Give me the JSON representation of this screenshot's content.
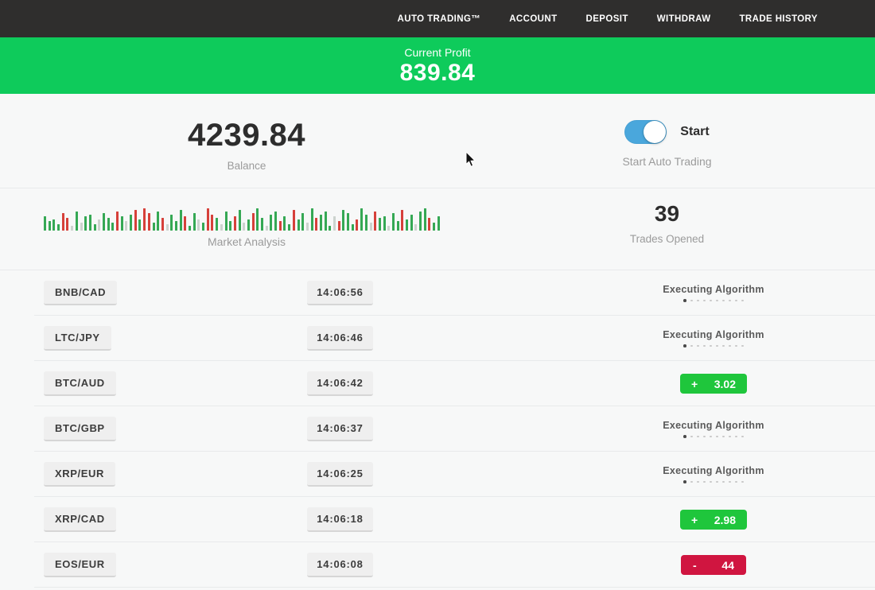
{
  "nav": {
    "items": [
      {
        "label": "AUTO TRADING™"
      },
      {
        "label": "ACCOUNT"
      },
      {
        "label": "DEPOSIT"
      },
      {
        "label": "WITHDRAW"
      },
      {
        "label": "TRADE HISTORY"
      }
    ]
  },
  "profit_banner": {
    "label": "Current Profit",
    "value": "839.84",
    "bg_color": "#0ecb5b"
  },
  "stats": {
    "balance": {
      "value": "4239.84",
      "label": "Balance"
    },
    "auto_trading": {
      "toggle_on": true,
      "toggle_label": "Start",
      "caption": "Start Auto Trading",
      "toggle_color": "#4aa7dc"
    },
    "market_analysis": {
      "label": "Market Analysis",
      "bar_colors": {
        "g": "#35a854",
        "r": "#d6403a",
        "e": "#ccd3ce"
      },
      "bars": [
        [
          18,
          "g"
        ],
        [
          12,
          "g"
        ],
        [
          14,
          "g"
        ],
        [
          8,
          "g"
        ],
        [
          22,
          "r"
        ],
        [
          16,
          "r"
        ],
        [
          6,
          "e"
        ],
        [
          24,
          "g"
        ],
        [
          10,
          "e"
        ],
        [
          18,
          "g"
        ],
        [
          20,
          "g"
        ],
        [
          8,
          "g"
        ],
        [
          14,
          "e"
        ],
        [
          22,
          "g"
        ],
        [
          16,
          "g"
        ],
        [
          10,
          "g"
        ],
        [
          24,
          "r"
        ],
        [
          18,
          "g"
        ],
        [
          12,
          "e"
        ],
        [
          20,
          "g"
        ],
        [
          26,
          "r"
        ],
        [
          14,
          "g"
        ],
        [
          28,
          "r"
        ],
        [
          22,
          "r"
        ],
        [
          10,
          "g"
        ],
        [
          24,
          "g"
        ],
        [
          16,
          "r"
        ],
        [
          8,
          "e"
        ],
        [
          20,
          "g"
        ],
        [
          12,
          "g"
        ],
        [
          26,
          "g"
        ],
        [
          18,
          "r"
        ],
        [
          6,
          "g"
        ],
        [
          22,
          "g"
        ],
        [
          14,
          "e"
        ],
        [
          10,
          "g"
        ],
        [
          28,
          "r"
        ],
        [
          20,
          "r"
        ],
        [
          16,
          "g"
        ],
        [
          8,
          "e"
        ],
        [
          24,
          "g"
        ],
        [
          12,
          "g"
        ],
        [
          18,
          "r"
        ],
        [
          26,
          "g"
        ],
        [
          10,
          "e"
        ],
        [
          14,
          "g"
        ],
        [
          22,
          "r"
        ],
        [
          28,
          "g"
        ],
        [
          16,
          "g"
        ],
        [
          6,
          "e"
        ],
        [
          20,
          "g"
        ],
        [
          24,
          "g"
        ],
        [
          12,
          "r"
        ],
        [
          18,
          "g"
        ],
        [
          8,
          "g"
        ],
        [
          26,
          "r"
        ],
        [
          14,
          "g"
        ],
        [
          22,
          "g"
        ],
        [
          10,
          "e"
        ],
        [
          28,
          "g"
        ],
        [
          16,
          "r"
        ],
        [
          20,
          "g"
        ],
        [
          24,
          "g"
        ],
        [
          6,
          "g"
        ],
        [
          18,
          "e"
        ],
        [
          12,
          "r"
        ],
        [
          26,
          "g"
        ],
        [
          22,
          "g"
        ],
        [
          8,
          "g"
        ],
        [
          14,
          "r"
        ],
        [
          28,
          "g"
        ],
        [
          20,
          "g"
        ],
        [
          10,
          "e"
        ],
        [
          24,
          "r"
        ],
        [
          16,
          "g"
        ],
        [
          18,
          "g"
        ],
        [
          6,
          "e"
        ],
        [
          22,
          "g"
        ],
        [
          12,
          "g"
        ],
        [
          26,
          "r"
        ],
        [
          14,
          "g"
        ],
        [
          20,
          "g"
        ],
        [
          8,
          "e"
        ],
        [
          24,
          "g"
        ],
        [
          28,
          "g"
        ],
        [
          16,
          "r"
        ],
        [
          10,
          "g"
        ],
        [
          18,
          "g"
        ]
      ]
    },
    "trades_opened": {
      "value": "39",
      "label": "Trades Opened"
    }
  },
  "trades": {
    "executing_dots": 10,
    "status_colors": {
      "profit": "#1fc63c",
      "loss": "#d01540"
    },
    "rows": [
      {
        "pair": "BNB/CAD",
        "time": "14:06:56",
        "status": {
          "type": "executing",
          "label": "Executing Algorithm"
        }
      },
      {
        "pair": "LTC/JPY",
        "time": "14:06:46",
        "status": {
          "type": "executing",
          "label": "Executing Algorithm"
        }
      },
      {
        "pair": "BTC/AUD",
        "time": "14:06:42",
        "status": {
          "type": "profit",
          "sign": "+",
          "value": "3.02"
        }
      },
      {
        "pair": "BTC/GBP",
        "time": "14:06:37",
        "status": {
          "type": "executing",
          "label": "Executing Algorithm"
        }
      },
      {
        "pair": "XRP/EUR",
        "time": "14:06:25",
        "status": {
          "type": "executing",
          "label": "Executing Algorithm"
        }
      },
      {
        "pair": "XRP/CAD",
        "time": "14:06:18",
        "status": {
          "type": "profit",
          "sign": "+",
          "value": "2.98"
        }
      },
      {
        "pair": "EOS/EUR",
        "time": "14:06:08",
        "status": {
          "type": "loss",
          "sign": "-",
          "value": "44"
        }
      }
    ]
  }
}
